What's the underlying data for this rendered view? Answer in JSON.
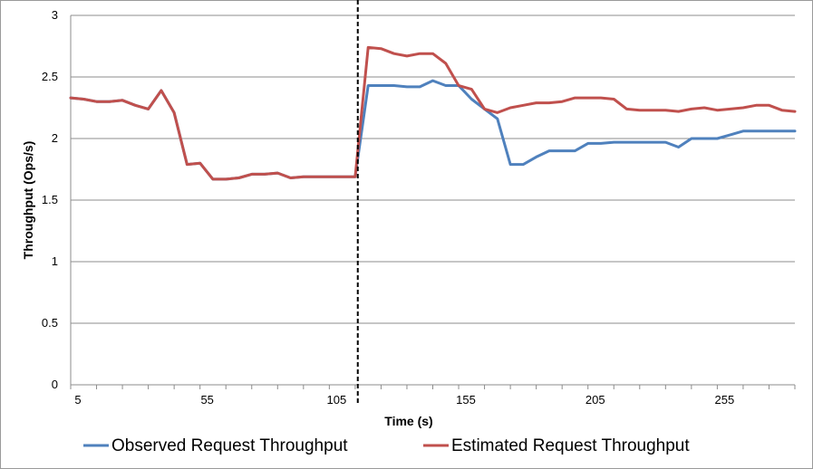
{
  "chart_data": {
    "type": "line",
    "xlabel": "Time (s)",
    "ylabel": "Throughput (Ops/s)",
    "xlim": [
      5,
      285
    ],
    "ylim": [
      0,
      3
    ],
    "x_ticks": [
      5,
      55,
      105,
      155,
      205,
      255
    ],
    "y_ticks": [
      0,
      0.5,
      1,
      1.5,
      2,
      2.5,
      3
    ],
    "y_tick_labels": [
      "0",
      "0.5",
      "1",
      "1.5",
      "2",
      "2.5",
      "3"
    ],
    "grid": "horizontal",
    "legend_position": "bottom",
    "marker_line_x": 116,
    "series": [
      {
        "name": "Observed Request Throughput",
        "color": "#4f81bd",
        "x": [
          5,
          10,
          15,
          20,
          25,
          30,
          35,
          40,
          45,
          50,
          55,
          60,
          65,
          70,
          75,
          80,
          85,
          90,
          95,
          100,
          105,
          110,
          115,
          120,
          125,
          130,
          135,
          140,
          145,
          150,
          155,
          160,
          165,
          170,
          175,
          180,
          185,
          190,
          195,
          200,
          205,
          210,
          215,
          220,
          225,
          230,
          235,
          240,
          245,
          250,
          255,
          260,
          265,
          270,
          275,
          280,
          285
        ],
        "y": [
          2.33,
          2.32,
          2.3,
          2.3,
          2.31,
          2.27,
          2.24,
          2.39,
          2.21,
          1.79,
          1.8,
          1.67,
          1.67,
          1.68,
          1.71,
          1.71,
          1.72,
          1.68,
          1.69,
          1.69,
          1.69,
          1.69,
          1.69,
          2.43,
          2.43,
          2.43,
          2.42,
          2.42,
          2.47,
          2.43,
          2.43,
          2.32,
          2.24,
          2.16,
          1.79,
          1.79,
          1.85,
          1.9,
          1.9,
          1.9,
          1.96,
          1.96,
          1.97,
          1.97,
          1.97,
          1.97,
          1.97,
          1.93,
          2.0,
          2.0,
          2.0,
          2.03,
          2.06,
          2.06,
          2.06,
          2.06,
          2.06
        ]
      },
      {
        "name": "Estimated Request Throughput",
        "color": "#c0504d",
        "x": [
          5,
          10,
          15,
          20,
          25,
          30,
          35,
          40,
          45,
          50,
          55,
          60,
          65,
          70,
          75,
          80,
          85,
          90,
          95,
          100,
          105,
          110,
          115,
          120,
          125,
          130,
          135,
          140,
          145,
          150,
          155,
          160,
          165,
          170,
          175,
          180,
          185,
          190,
          195,
          200,
          205,
          210,
          215,
          220,
          225,
          230,
          235,
          240,
          245,
          250,
          255,
          260,
          265,
          270,
          275,
          280,
          285
        ],
        "y": [
          2.33,
          2.32,
          2.3,
          2.3,
          2.31,
          2.27,
          2.24,
          2.39,
          2.21,
          1.79,
          1.8,
          1.67,
          1.67,
          1.68,
          1.71,
          1.71,
          1.72,
          1.68,
          1.69,
          1.69,
          1.69,
          1.69,
          1.69,
          2.74,
          2.73,
          2.69,
          2.67,
          2.69,
          2.69,
          2.61,
          2.43,
          2.4,
          2.24,
          2.21,
          2.25,
          2.27,
          2.29,
          2.29,
          2.3,
          2.33,
          2.33,
          2.33,
          2.32,
          2.24,
          2.23,
          2.23,
          2.23,
          2.22,
          2.24,
          2.25,
          2.23,
          2.24,
          2.25,
          2.27,
          2.27,
          2.23,
          2.22
        ]
      }
    ]
  }
}
